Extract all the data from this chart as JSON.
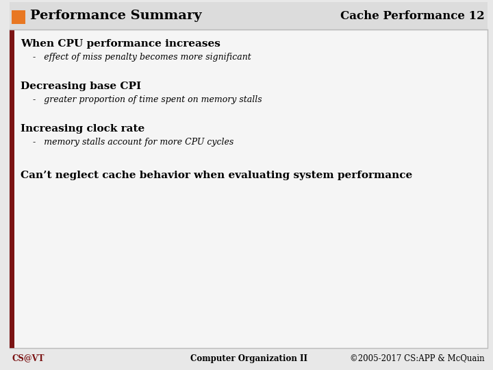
{
  "title": "Performance Summary",
  "subtitle": "Cache Performance 12",
  "background_color": "#e8e8e8",
  "slide_bg": "#f5f5f5",
  "orange_box_color": "#e87722",
  "dark_red_bar_color": "#7b1414",
  "title_text_color": "#000000",
  "subtitle_text_color": "#000000",
  "heading1": "When CPU performance increases",
  "bullet1": "effect of miss penalty becomes more significant",
  "heading2": "Decreasing base CPI",
  "bullet2": "greater proportion of time spent on memory stalls",
  "heading3": "Increasing clock rate",
  "bullet3": "memory stalls account for more CPU cycles",
  "conclusion": "Can’t neglect cache behavior when evaluating system performance",
  "footer_left": "CS@VT",
  "footer_center": "Computer Organization II",
  "footer_right": "©2005-2017 CS:APP & McQuain",
  "title_fontsize": 14,
  "subtitle_fontsize": 12,
  "heading_fontsize": 11,
  "bullet_fontsize": 9,
  "conclusion_fontsize": 11,
  "footer_fontsize": 8.5
}
